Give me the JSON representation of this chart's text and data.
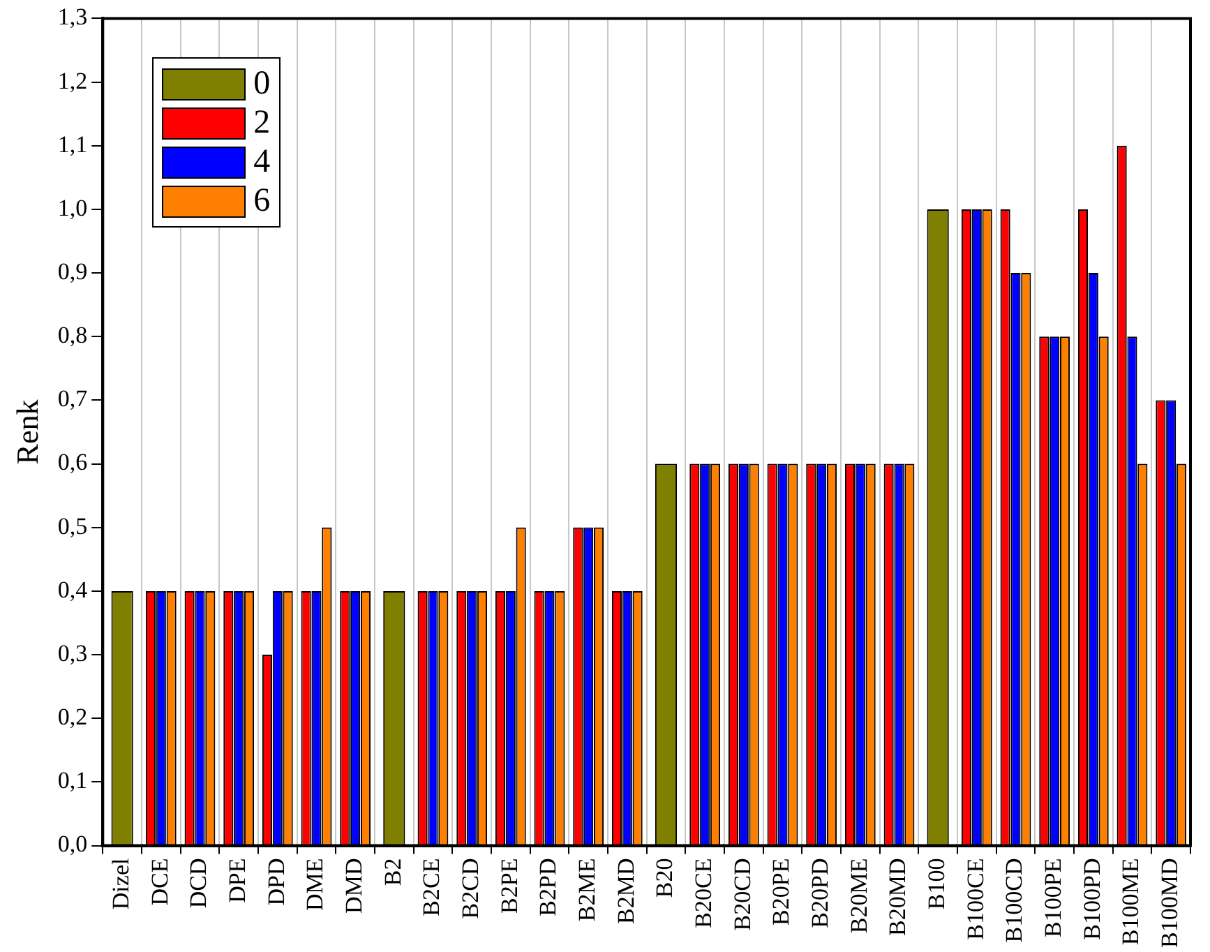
{
  "chart_data": {
    "type": "bar",
    "ylabel": "Renk",
    "categories": [
      "Dizel",
      "DCE",
      "DCD",
      "DPE",
      "DPD",
      "DME",
      "DMD",
      "B2",
      "B2CE",
      "B2CD",
      "B2PE",
      "B2PD",
      "B2ME",
      "B2MD",
      "B20",
      "B20CE",
      "B20CD",
      "B20PE",
      "B20PD",
      "B20ME",
      "B20MD",
      "B100",
      "B100CE",
      "B100CD",
      "B100PE",
      "B100PD",
      "B100ME",
      "B100MD"
    ],
    "series": [
      {
        "name": "0",
        "color": "#808000",
        "values": [
          0.4,
          null,
          null,
          null,
          null,
          null,
          null,
          0.4,
          null,
          null,
          null,
          null,
          null,
          null,
          0.6,
          null,
          null,
          null,
          null,
          null,
          null,
          1.0,
          null,
          null,
          null,
          null,
          null,
          null
        ]
      },
      {
        "name": "2",
        "color": "#ff0000",
        "values": [
          null,
          0.4,
          0.4,
          0.4,
          0.3,
          0.4,
          0.4,
          null,
          0.4,
          0.4,
          0.4,
          0.4,
          0.5,
          0.4,
          null,
          0.6,
          0.6,
          0.6,
          0.6,
          0.6,
          0.6,
          null,
          1.0,
          1.0,
          0.8,
          1.0,
          1.1,
          0.7
        ]
      },
      {
        "name": "4",
        "color": "#0000ff",
        "values": [
          null,
          0.4,
          0.4,
          0.4,
          0.4,
          0.4,
          0.4,
          null,
          0.4,
          0.4,
          0.4,
          0.4,
          0.5,
          0.4,
          null,
          0.6,
          0.6,
          0.6,
          0.6,
          0.6,
          0.6,
          null,
          1.0,
          0.9,
          0.8,
          0.9,
          0.8,
          0.7
        ]
      },
      {
        "name": "6",
        "color": "#ff8000",
        "values": [
          null,
          0.4,
          0.4,
          0.4,
          0.4,
          0.5,
          0.4,
          null,
          0.4,
          0.4,
          0.5,
          0.4,
          0.5,
          0.4,
          null,
          0.6,
          0.6,
          0.6,
          0.6,
          0.6,
          0.6,
          null,
          1.0,
          0.9,
          0.8,
          0.8,
          0.6,
          0.6
        ]
      }
    ],
    "ylim": [
      0,
      1.3
    ],
    "yticks": [
      {
        "value": 0,
        "label": "0,0"
      },
      {
        "value": 0.1,
        "label": "0,1"
      },
      {
        "value": 0.2,
        "label": "0,2"
      },
      {
        "value": 0.3,
        "label": "0,3"
      },
      {
        "value": 0.4,
        "label": "0,4"
      },
      {
        "value": 0.5,
        "label": "0,5"
      },
      {
        "value": 0.6,
        "label": "0,6"
      },
      {
        "value": 0.7,
        "label": "0,7"
      },
      {
        "value": 0.8,
        "label": "0,8"
      },
      {
        "value": 0.9,
        "label": "0,9"
      },
      {
        "value": 1.0,
        "label": "1,0"
      },
      {
        "value": 1.1,
        "label": "1,1"
      },
      {
        "value": 1.2,
        "label": "1,2"
      },
      {
        "value": 1.3,
        "label": "1,3"
      }
    ],
    "grid": "x",
    "legend": "top left"
  }
}
